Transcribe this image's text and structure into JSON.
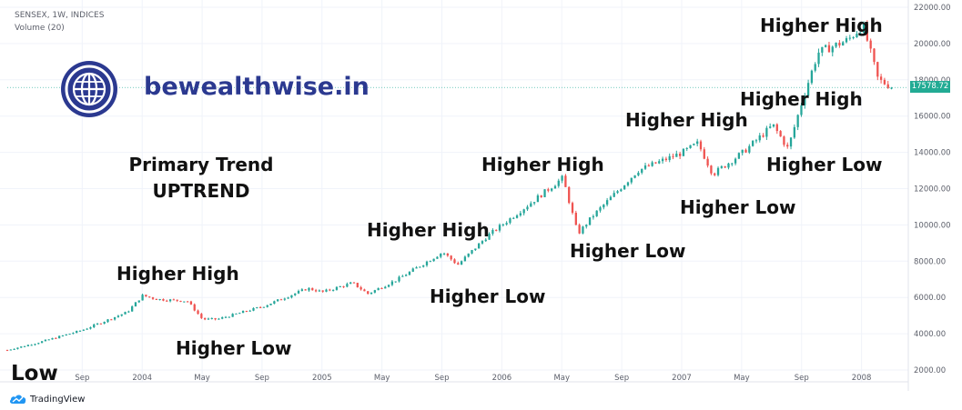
{
  "header": {
    "symbol_line": "SENSEX, 1W, INDICES",
    "volume_line": "Volume (20)"
  },
  "brand": {
    "text": "bewealthwise.in",
    "icon": "globe-icon",
    "color": "#2b3990"
  },
  "footer": {
    "logo_text": "TradingView",
    "icon": "tradingview-cloud-icon"
  },
  "last_price_label": "17578.72",
  "colors": {
    "up": "#26a69a",
    "down": "#ef5350",
    "price_tag": "#22ab94",
    "axis_text": "#5d606b"
  },
  "annotations": {
    "primary_trend": "Primary Trend",
    "uptrend": "UPTREND",
    "low": "Low",
    "hh1": "Higher High",
    "hl1": "Higher Low",
    "hh2": "Higher High",
    "hl2": "Higher Low",
    "hh3": "Higher High",
    "hl3": "Higher Low",
    "hh4": "Higher High",
    "hl4": "Higher Low",
    "hh5": "Higher High",
    "hl5": "Higher Low",
    "hh6": "Higher High"
  },
  "chart_data": {
    "type": "candlestick",
    "title": "SENSEX, 1W, INDICES",
    "y_axis": {
      "ticks": [
        "22000.00",
        "20000.00",
        "18000.00",
        "16000.00",
        "14000.00",
        "12000.00",
        "10000.00",
        "8000.00",
        "6000.00",
        "4000.00",
        "2000.00"
      ],
      "range": [
        1950,
        22100
      ],
      "position": "right"
    },
    "x_axis": {
      "ticks": [
        "Sep",
        "2004",
        "May",
        "Sep",
        "2005",
        "May",
        "Sep",
        "2006",
        "May",
        "Sep",
        "2007",
        "May",
        "Sep",
        "2008"
      ],
      "range": [
        "2003-04",
        "2008-04"
      ]
    },
    "grid": true,
    "series_anchors": [
      {
        "date": "2003-04",
        "close": 3100
      },
      {
        "date": "2003-06",
        "close": 3500
      },
      {
        "date": "2003-09",
        "close": 4200
      },
      {
        "date": "2003-12",
        "close": 5200
      },
      {
        "date": "2004-01",
        "close": 6100
      },
      {
        "date": "2004-02",
        "close": 5900
      },
      {
        "date": "2004-04",
        "close": 5800
      },
      {
        "date": "2004-05",
        "close": 4800
      },
      {
        "date": "2004-06",
        "close": 4800
      },
      {
        "date": "2004-09",
        "close": 5500
      },
      {
        "date": "2004-12",
        "close": 6500
      },
      {
        "date": "2005-01",
        "close": 6300
      },
      {
        "date": "2005-03",
        "close": 6800
      },
      {
        "date": "2005-04",
        "close": 6200
      },
      {
        "date": "2005-06",
        "close": 7000
      },
      {
        "date": "2005-09",
        "close": 8500
      },
      {
        "date": "2005-10",
        "close": 7800
      },
      {
        "date": "2005-12",
        "close": 9400
      },
      {
        "date": "2006-03",
        "close": 11300
      },
      {
        "date": "2006-05",
        "close": 12600
      },
      {
        "date": "2006-06",
        "close": 9500
      },
      {
        "date": "2006-07",
        "close": 10500
      },
      {
        "date": "2006-10",
        "close": 13000
      },
      {
        "date": "2007-01",
        "close": 14000
      },
      {
        "date": "2007-02",
        "close": 14500
      },
      {
        "date": "2007-03",
        "close": 12800
      },
      {
        "date": "2007-05",
        "close": 14000
      },
      {
        "date": "2007-07",
        "close": 15500
      },
      {
        "date": "2007-08",
        "close": 14200
      },
      {
        "date": "2007-09",
        "close": 17000
      },
      {
        "date": "2007-10",
        "close": 19500
      },
      {
        "date": "2007-12",
        "close": 20200
      },
      {
        "date": "2008-01",
        "close": 21000
      },
      {
        "date": "2008-02",
        "close": 18000
      },
      {
        "date": "2008-03",
        "close": 17578.72
      }
    ]
  }
}
